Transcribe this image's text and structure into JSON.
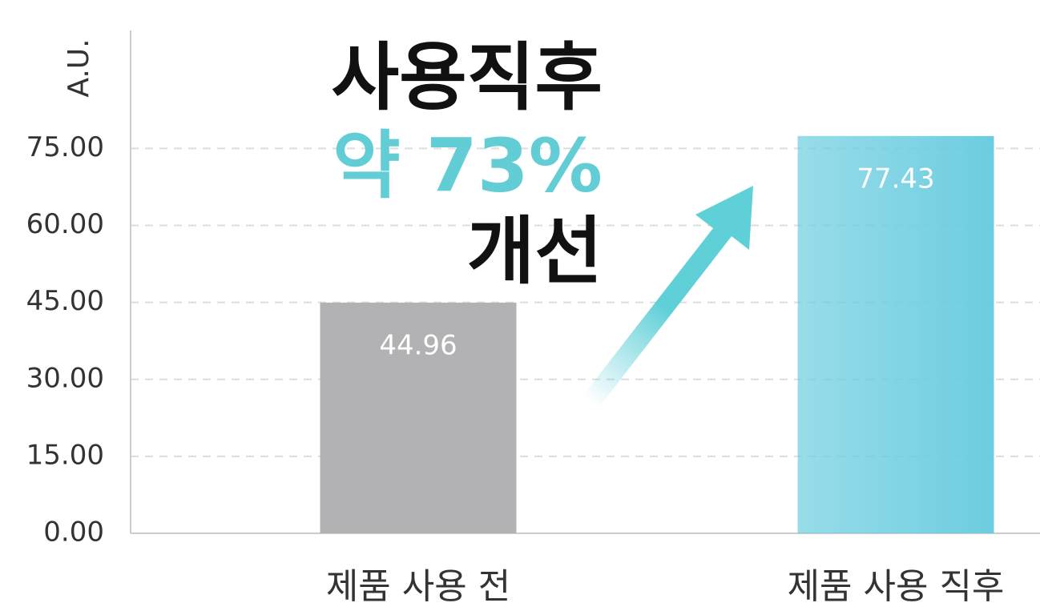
{
  "chart_data": {
    "type": "bar",
    "y_axis_label": "A.U.",
    "annotations": [
      "사용직후",
      "약 73%",
      "개선"
    ],
    "categories": [
      "제품 사용 전",
      "제품 사용 직후"
    ],
    "values": [
      44.96,
      77.43
    ],
    "colors": [
      "#b2b2b4",
      "#6ccde0"
    ],
    "ylim": [
      0,
      98
    ],
    "yticks": [
      {
        "value": 0,
        "label": "0.00"
      },
      {
        "value": 15,
        "label": "15.00"
      },
      {
        "value": 30,
        "label": "30.00"
      },
      {
        "value": 45,
        "label": "45.00"
      },
      {
        "value": 60,
        "label": "60.00"
      },
      {
        "value": 75,
        "label": "75.00"
      }
    ],
    "grid": true
  }
}
